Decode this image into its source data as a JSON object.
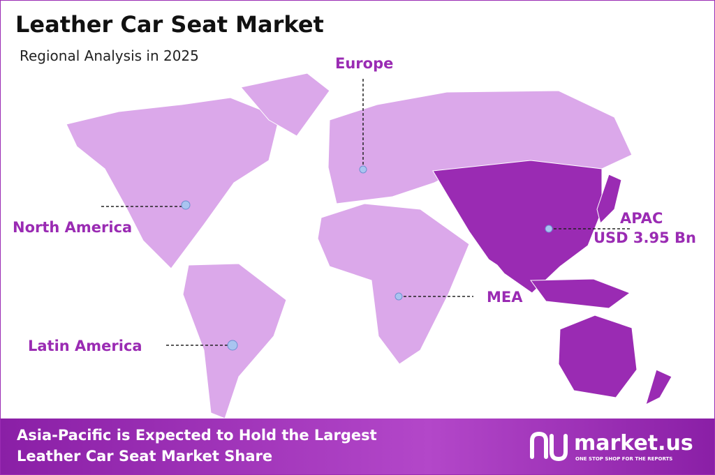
{
  "header": {
    "title": "Leather Car Seat Market",
    "subtitle": "Regional Analysis in 2025"
  },
  "regions": [
    {
      "label": "Europe"
    },
    {
      "label": "North America"
    },
    {
      "label": "APAC",
      "value": "USD 3.95 Bn"
    },
    {
      "label": "MEA"
    },
    {
      "label": "Latin America"
    }
  ],
  "footer": {
    "lines": [
      "Asia-Pacific is Expected to Hold the Largest",
      "Leather Car Seat Market Share"
    ],
    "logo": "market.us",
    "tagline": "ONE STOP SHOP FOR THE REPORTS"
  }
}
